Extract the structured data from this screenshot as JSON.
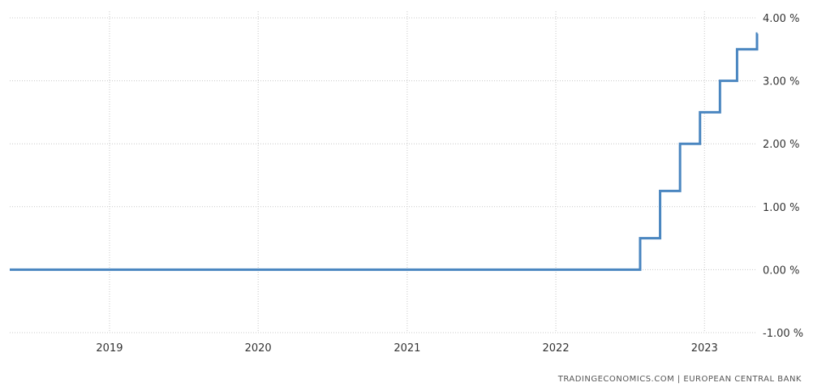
{
  "chart_data": {
    "type": "line",
    "step": true,
    "series": [
      {
        "color": "#4a86c0",
        "x": [
          "2018-05-01",
          "2022-07-27",
          "2022-09-14",
          "2022-11-02",
          "2022-12-21",
          "2023-02-08",
          "2023-03-22",
          "2023-05-10"
        ],
        "values": [
          0.0,
          0.5,
          1.25,
          2.0,
          2.5,
          3.0,
          3.5,
          3.75
        ]
      }
    ],
    "x_ticks": [
      "2019",
      "2020",
      "2021",
      "2022",
      "2023"
    ],
    "y_ticks": [
      "4.00 %",
      "3.00 %",
      "2.00 %",
      "1.00 %",
      "0.00 %",
      "-1.00 %"
    ],
    "y_tick_values": [
      4,
      3,
      2,
      1,
      0,
      -1
    ],
    "ylim": [
      -1,
      4
    ],
    "xlim": [
      "2018-05-01",
      "2023-05-10"
    ],
    "grid": true,
    "xlabel": "",
    "ylabel": ""
  },
  "source": "TRADINGECONOMICS.COM  |  EUROPEAN CENTRAL BANK"
}
